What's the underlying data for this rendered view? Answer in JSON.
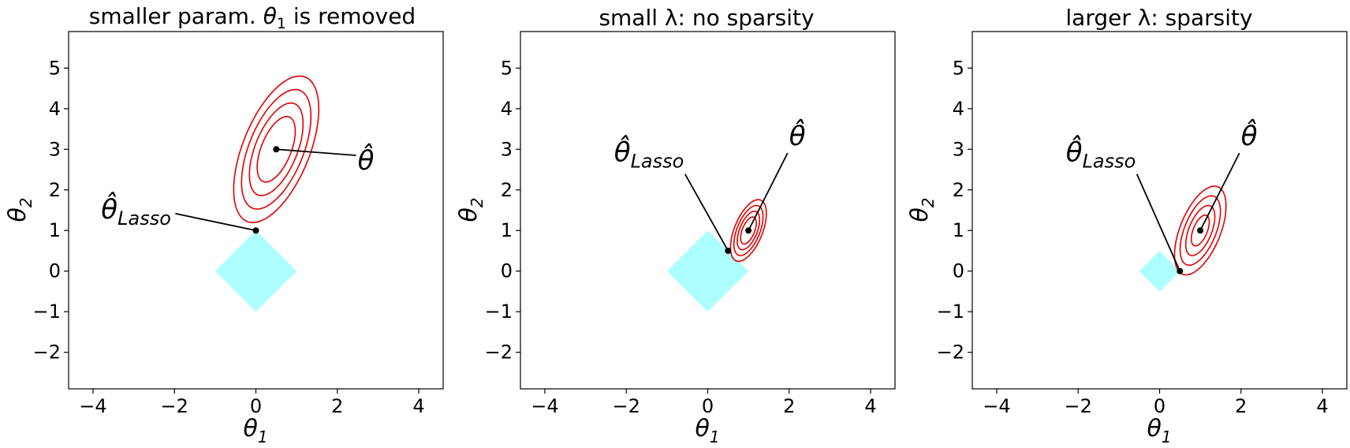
{
  "chart_data": [
    {
      "type": "contour",
      "title": "smaller param. θ₁ is removed",
      "xlabel": "θ1",
      "ylabel": "θ2",
      "xlim": [
        -4.6,
        4.6
      ],
      "ylim": [
        -2.9,
        5.9
      ],
      "xticks": [
        -4,
        -2,
        0,
        2,
        4
      ],
      "yticks": [
        -2,
        -1,
        0,
        1,
        2,
        3,
        4,
        5
      ],
      "xtick_labels": [
        "−4",
        "−2",
        "0",
        "2",
        "4"
      ],
      "ytick_labels": [
        "−2",
        "−1",
        "0",
        "1",
        "2",
        "3",
        "4",
        "5"
      ],
      "l1_ball_radius": 1.0,
      "theta_hat": [
        0.5,
        3.0
      ],
      "theta_lasso": [
        0.0,
        1.0
      ],
      "contour_levels": [
        0.85,
        1.2,
        1.55,
        1.9
      ],
      "contour_shape": {
        "std_x": 0.55,
        "std_y": 0.95,
        "rho": 0.55
      },
      "annotations": [
        {
          "text": "θ̂",
          "target": "theta_hat",
          "label_pos": [
            2.5,
            2.5
          ]
        },
        {
          "text": "θ̂Lasso",
          "target": "theta_lasso",
          "label_pos": [
            -3.8,
            1.3
          ]
        }
      ]
    },
    {
      "type": "contour",
      "title": "small λ: no sparsity",
      "xlabel": "θ1",
      "ylabel": "θ2",
      "xlim": [
        -4.6,
        4.6
      ],
      "ylim": [
        -2.9,
        5.9
      ],
      "xticks": [
        -4,
        -2,
        0,
        2,
        4
      ],
      "yticks": [
        -2,
        -1,
        0,
        1,
        2,
        3,
        4,
        5
      ],
      "xtick_labels": [
        "−4",
        "−2",
        "0",
        "2",
        "4"
      ],
      "ytick_labels": [
        "−2",
        "−1",
        "0",
        "1",
        "2",
        "3",
        "4",
        "5"
      ],
      "l1_ball_radius": 1.0,
      "theta_hat": [
        1.0,
        1.0
      ],
      "theta_lasso": [
        0.5,
        0.5
      ],
      "contour_levels": [
        0.35,
        0.5,
        0.65,
        0.8
      ],
      "contour_shape": {
        "std_x": 0.55,
        "std_y": 0.95,
        "rho": 0.55
      },
      "annotations": [
        {
          "text": "θ̂",
          "target": "theta_hat",
          "label_pos": [
            2.0,
            3.1
          ]
        },
        {
          "text": "θ̂Lasso",
          "target": "theta_lasso",
          "label_pos": [
            -2.3,
            2.7
          ]
        }
      ]
    },
    {
      "type": "contour",
      "title": "larger λ: sparsity",
      "xlabel": "θ1",
      "ylabel": "θ2",
      "xlim": [
        -4.6,
        4.6
      ],
      "ylim": [
        -2.9,
        5.9
      ],
      "xticks": [
        -4,
        -2,
        0,
        2,
        4
      ],
      "yticks": [
        -2,
        -1,
        0,
        1,
        2,
        3,
        4,
        5
      ],
      "xtick_labels": [
        "−4",
        "−2",
        "0",
        "2",
        "4"
      ],
      "ytick_labels": [
        "−2",
        "−1",
        "0",
        "1",
        "2",
        "3",
        "4",
        "5"
      ],
      "l1_ball_radius": 0.5,
      "theta_hat": [
        1.0,
        1.0
      ],
      "theta_lasso": [
        0.5,
        0.0
      ],
      "contour_levels": [
        0.4,
        0.65,
        0.9,
        1.15
      ],
      "contour_shape": {
        "std_x": 0.55,
        "std_y": 0.95,
        "rho": 0.55
      },
      "annotations": [
        {
          "text": "θ̂",
          "target": "theta_hat",
          "label_pos": [
            2.0,
            3.1
          ]
        },
        {
          "text": "θ̂Lasso",
          "target": "theta_lasso",
          "label_pos": [
            -2.3,
            2.7
          ]
        }
      ]
    }
  ]
}
